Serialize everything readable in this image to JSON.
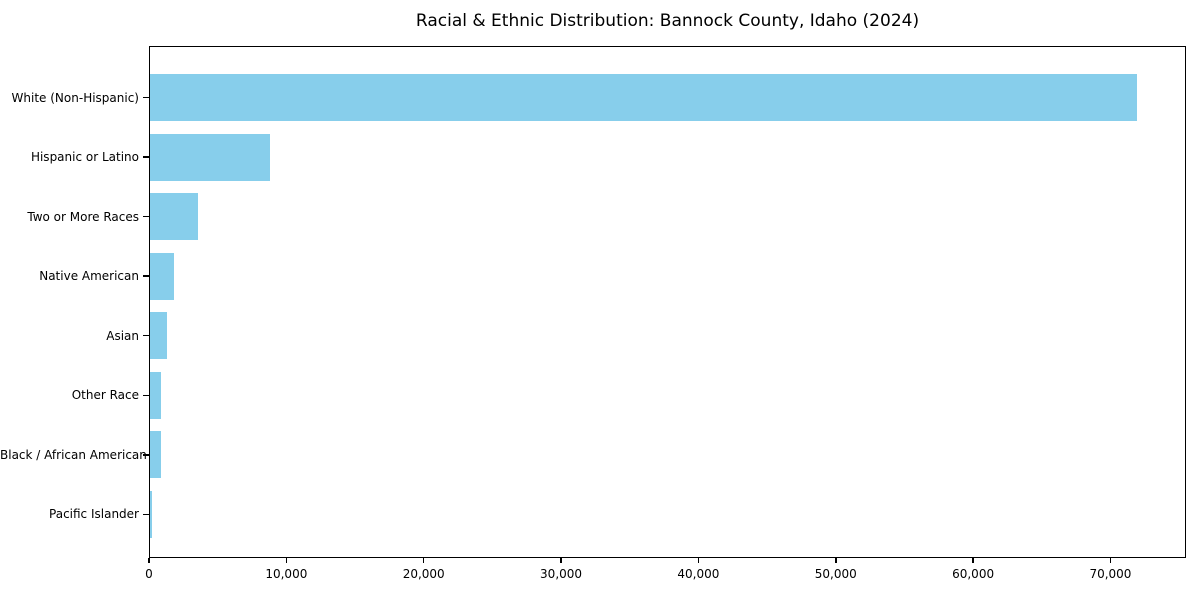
{
  "chart_data": {
    "type": "bar",
    "orientation": "horizontal",
    "title": "Racial & Ethnic Distribution: Bannock County, Idaho (2024)",
    "categories": [
      "White (Non-Hispanic)",
      "Hispanic or Latino",
      "Two or More Races",
      "Native American",
      "Asian",
      "Other Race",
      "Black / African American",
      "Pacific Islander"
    ],
    "values": [
      71900,
      8800,
      3600,
      1850,
      1300,
      900,
      850,
      250
    ],
    "xlabel": "",
    "ylabel": "",
    "xlim": [
      0,
      75500
    ],
    "x_ticks": [
      0,
      10000,
      20000,
      30000,
      40000,
      50000,
      60000,
      70000
    ],
    "x_tick_labels": [
      "0",
      "10,000",
      "20,000",
      "30,000",
      "40,000",
      "50,000",
      "60,000",
      "70,000"
    ],
    "bar_color": "#87CEEB",
    "grid": false,
    "legend": null,
    "background_color": "#ffffff",
    "spine_color": "#000000",
    "text_color": "#000000"
  }
}
